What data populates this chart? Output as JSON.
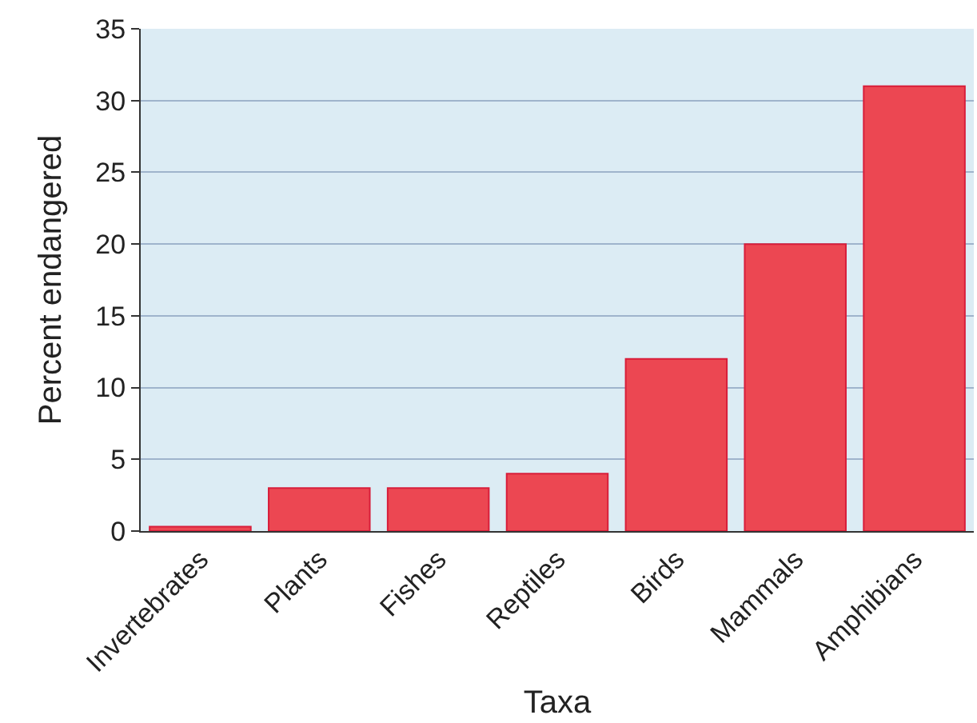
{
  "chart_data": {
    "type": "bar",
    "xlabel": "Taxa",
    "ylabel": "Percent endangered",
    "categories": [
      "Invertebrates",
      "Plants",
      "Fishes",
      "Reptiles",
      "Birds",
      "Mammals",
      "Amphibians"
    ],
    "values": [
      0.3,
      3,
      3,
      4,
      12,
      20,
      31
    ],
    "color": "#ec4752",
    "ylim": [
      0,
      35
    ],
    "yticks": [
      0,
      5,
      10,
      15,
      20,
      25,
      30,
      35
    ],
    "grid": "y"
  }
}
